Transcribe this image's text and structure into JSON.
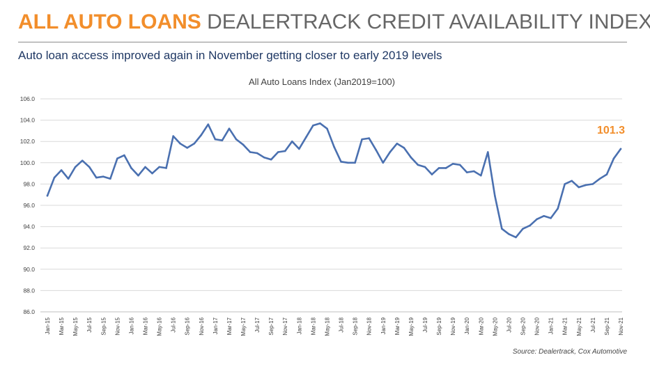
{
  "header": {
    "accent": "ALL AUTO LOANS",
    "rest": "DEALERTRACK CREDIT AVAILABILITY INDEX"
  },
  "subtitle": "Auto loan access improved again in November getting closer to early 2019 levels",
  "source": "Source: Dealertrack, Cox Automotive",
  "colors": {
    "line": "#4a70b0",
    "accent": "#f28e2b",
    "grid": "#d9d9d9"
  },
  "chart_data": {
    "type": "line",
    "title": "All Auto Loans Index (Jan2019=100)",
    "ylim": [
      86.0,
      106.0
    ],
    "yticks": [
      86.0,
      88.0,
      90.0,
      92.0,
      94.0,
      96.0,
      98.0,
      100.0,
      102.0,
      104.0,
      106.0
    ],
    "grid": true,
    "x_tick_labels": [
      "Jan-15",
      "Mar-15",
      "May-15",
      "Jul-15",
      "Sep-15",
      "Nov-15",
      "Jan-16",
      "Mar-16",
      "May-16",
      "Jul-16",
      "Sep-16",
      "Nov-16",
      "Jan-17",
      "Mar-17",
      "May-17",
      "Jul-17",
      "Sep-17",
      "Nov-17",
      "Jan-18",
      "Mar-18",
      "May-18",
      "Jul-18",
      "Sep-18",
      "Nov-18",
      "Jan-19",
      "Mar-19",
      "May-19",
      "Jul-19",
      "Sep-19",
      "Nov-19",
      "Jan-20",
      "Mar-20",
      "May-20",
      "Jul-20",
      "Sep-20",
      "Nov-20",
      "Jan-21",
      "Mar-21",
      "May-21",
      "Jul-21",
      "Sep-21",
      "Nov-21"
    ],
    "x": [
      "Jan-15",
      "Feb-15",
      "Mar-15",
      "Apr-15",
      "May-15",
      "Jun-15",
      "Jul-15",
      "Aug-15",
      "Sep-15",
      "Oct-15",
      "Nov-15",
      "Dec-15",
      "Jan-16",
      "Feb-16",
      "Mar-16",
      "Apr-16",
      "May-16",
      "Jun-16",
      "Jul-16",
      "Aug-16",
      "Sep-16",
      "Oct-16",
      "Nov-16",
      "Dec-16",
      "Jan-17",
      "Feb-17",
      "Mar-17",
      "Apr-17",
      "May-17",
      "Jun-17",
      "Jul-17",
      "Aug-17",
      "Sep-17",
      "Oct-17",
      "Nov-17",
      "Dec-17",
      "Jan-18",
      "Feb-18",
      "Mar-18",
      "Apr-18",
      "May-18",
      "Jun-18",
      "Jul-18",
      "Aug-18",
      "Sep-18",
      "Oct-18",
      "Nov-18",
      "Dec-18",
      "Jan-19",
      "Feb-19",
      "Mar-19",
      "Apr-19",
      "May-19",
      "Jun-19",
      "Jul-19",
      "Aug-19",
      "Sep-19",
      "Oct-19",
      "Nov-19",
      "Dec-19",
      "Jan-20",
      "Feb-20",
      "Mar-20",
      "Apr-20",
      "May-20",
      "Jun-20",
      "Jul-20",
      "Aug-20",
      "Sep-20",
      "Oct-20",
      "Nov-20",
      "Dec-20",
      "Jan-21",
      "Feb-21",
      "Mar-21",
      "Apr-21",
      "May-21",
      "Jun-21",
      "Jul-21",
      "Aug-21",
      "Sep-21",
      "Oct-21",
      "Nov-21"
    ],
    "values": [
      96.9,
      98.6,
      99.3,
      98.5,
      99.6,
      100.2,
      99.6,
      98.6,
      98.7,
      98.5,
      100.4,
      100.7,
      99.5,
      98.8,
      99.6,
      99.0,
      99.6,
      99.5,
      102.5,
      101.8,
      101.4,
      101.8,
      102.6,
      103.6,
      102.2,
      102.1,
      103.2,
      102.2,
      101.7,
      101.0,
      100.9,
      100.5,
      100.3,
      101.0,
      101.1,
      102.0,
      101.3,
      102.4,
      103.5,
      103.7,
      103.2,
      101.5,
      100.1,
      100.0,
      100.0,
      102.2,
      102.3,
      101.2,
      100.0,
      101.0,
      101.8,
      101.4,
      100.5,
      99.8,
      99.6,
      98.9,
      99.5,
      99.5,
      99.9,
      99.8,
      99.1,
      99.2,
      98.8,
      101.0,
      96.9,
      93.8,
      93.3,
      93.0,
      93.8,
      94.1,
      94.7,
      95.0,
      94.8,
      95.7,
      98.0,
      98.3,
      97.7,
      97.9,
      98.0,
      98.5,
      98.9,
      100.4,
      101.3
    ],
    "last_value_label": "101.3"
  }
}
